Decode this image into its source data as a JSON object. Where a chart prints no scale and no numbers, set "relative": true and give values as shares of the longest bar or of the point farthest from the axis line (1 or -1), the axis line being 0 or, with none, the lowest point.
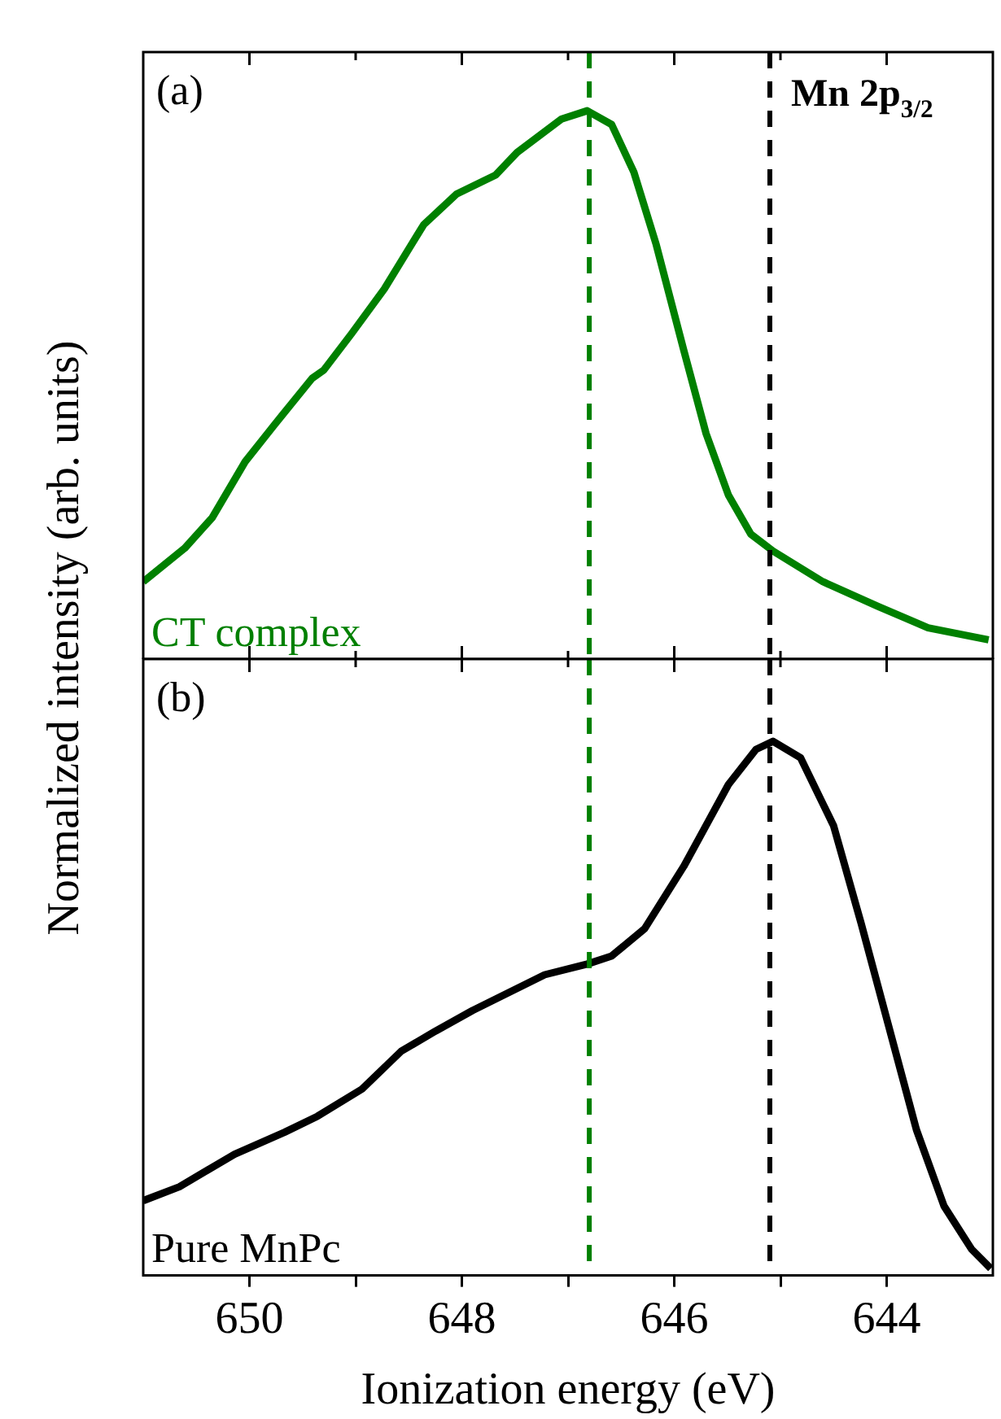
{
  "chart_data": [
    {
      "type": "line",
      "relative": true,
      "ylabel": "Normalized intensity (arb. units)",
      "xlim": [
        651,
        643
      ],
      "xticks": [
        650,
        {
          "value": 649,
          "label": null
        },
        648,
        {
          "value": 647,
          "label": null
        },
        646,
        {
          "value": 645,
          "label": null
        },
        644
      ],
      "tick_labels": false,
      "annotations": [
        "(a)"
      ],
      "ref_lines": [
        {
          "axis": "x",
          "value": 646.8,
          "color": "#008000",
          "line_style": "dashed"
        },
        {
          "axis": "x",
          "value": 645.1,
          "color": "#000000",
          "line_style": "dashed",
          "label": "Mn 2p$_{3/2}$"
        }
      ],
      "series": [
        {
          "name": "CT complex",
          "color": "#008000",
          "x": [
            651.0,
            650.61,
            650.35,
            650.04,
            649.77,
            649.41,
            649.3,
            649.04,
            648.73,
            648.36,
            648.05,
            647.68,
            647.48,
            647.06,
            646.82,
            646.59,
            646.38,
            646.17,
            645.91,
            645.7,
            645.49,
            645.28,
            645.07,
            644.6,
            644.08,
            643.61,
            643.04
          ],
          "values": [
            0.141,
            0.202,
            0.258,
            0.36,
            0.426,
            0.512,
            0.527,
            0.593,
            0.675,
            0.792,
            0.848,
            0.883,
            0.924,
            0.985,
            1.0,
            0.975,
            0.888,
            0.756,
            0.563,
            0.411,
            0.299,
            0.228,
            0.197,
            0.141,
            0.096,
            0.057,
            0.035
          ]
        }
      ]
    },
    {
      "type": "line",
      "relative": true,
      "xlabel": "Ionization energy (eV)",
      "xlim": [
        651,
        643
      ],
      "xticks": [
        650,
        {
          "value": 649,
          "label": null
        },
        648,
        {
          "value": 647,
          "label": null
        },
        646,
        {
          "value": 645,
          "label": null
        },
        644
      ],
      "tick_labels": "x",
      "annotations": [
        "(b)"
      ],
      "ref_lines": [
        {
          "axis": "x",
          "value": 646.8,
          "color": "#008000",
          "line_style": "dashed"
        },
        {
          "axis": "x",
          "value": 645.1,
          "color": "#000000",
          "line_style": "dashed"
        }
      ],
      "series": [
        {
          "name": "Pure MnPc",
          "color": "#000000",
          "x": [
            651.0,
            650.66,
            650.14,
            649.67,
            649.36,
            648.94,
            648.57,
            648.26,
            647.9,
            647.22,
            646.82,
            646.59,
            646.28,
            645.91,
            645.49,
            645.23,
            645.07,
            644.81,
            644.5,
            644.24,
            643.98,
            643.72,
            643.46,
            643.2,
            643.02
          ],
          "values": [
            0.14,
            0.166,
            0.227,
            0.268,
            0.298,
            0.349,
            0.42,
            0.456,
            0.496,
            0.563,
            0.583,
            0.598,
            0.649,
            0.766,
            0.919,
            0.985,
            1.0,
            0.969,
            0.842,
            0.659,
            0.466,
            0.273,
            0.13,
            0.049,
            0.013
          ]
        }
      ]
    }
  ]
}
